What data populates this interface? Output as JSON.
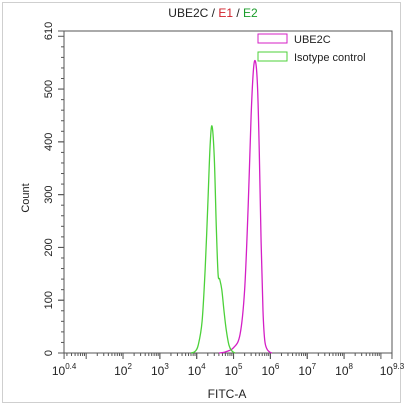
{
  "chart_data": {
    "type": "line",
    "title": {
      "parts": [
        {
          "text": "UBE2C",
          "color": "#222222"
        },
        {
          "text": " / ",
          "color": "#222222"
        },
        {
          "text": "E1",
          "color": "#d0202a"
        },
        {
          "text": " / ",
          "color": "#222222"
        },
        {
          "text": "E2",
          "color": "#1a9c2a"
        }
      ]
    },
    "xlabel": "FITC-A",
    "ylabel": "Count",
    "x_scale": "log10",
    "xlim": [
      2.5,
      2000000000
    ],
    "ylim": [
      0,
      610
    ],
    "x_ticks": [
      {
        "base": "10",
        "exp": "0.4",
        "value": 2.5119
      },
      {
        "base": "10",
        "exp": "2",
        "value": 100
      },
      {
        "base": "10",
        "exp": "3",
        "value": 1000
      },
      {
        "base": "10",
        "exp": "4",
        "value": 10000
      },
      {
        "base": "10",
        "exp": "5",
        "value": 100000
      },
      {
        "base": "10",
        "exp": "6",
        "value": 1000000
      },
      {
        "base": "10",
        "exp": "7",
        "value": 10000000
      },
      {
        "base": "10",
        "exp": "8",
        "value": 100000000
      },
      {
        "base": "10",
        "exp": "9.3",
        "value": 1995262315
      }
    ],
    "y_ticks": [
      "0",
      "100",
      "200",
      "300",
      "400",
      "500",
      "610"
    ],
    "y_tick_values": [
      0,
      100,
      200,
      300,
      400,
      500,
      610
    ],
    "legend_position": "top-right",
    "series": [
      {
        "name": "UBE2C",
        "color": "#d41fc6",
        "x": [
          40000,
          60000,
          100000,
          150000,
          200000,
          250000,
          300000,
          350000,
          400000,
          450000,
          500000,
          560000,
          630000,
          700000,
          800000,
          950000,
          1100000
        ],
        "y": [
          0,
          2,
          10,
          35,
          120,
          280,
          450,
          540,
          550,
          500,
          380,
          210,
          80,
          25,
          8,
          2,
          0
        ]
      },
      {
        "name": "Isotype control",
        "color": "#4cd13a",
        "x": [
          7000,
          9000,
          11000,
          14000,
          17000,
          20000,
          23000,
          26000,
          30000,
          34000,
          38000,
          42000,
          48000,
          55000,
          63000,
          75000,
          90000,
          110000
        ],
        "y": [
          0,
          3,
          15,
          60,
          160,
          280,
          390,
          430,
          370,
          240,
          150,
          140,
          120,
          80,
          45,
          15,
          4,
          0
        ]
      }
    ]
  }
}
